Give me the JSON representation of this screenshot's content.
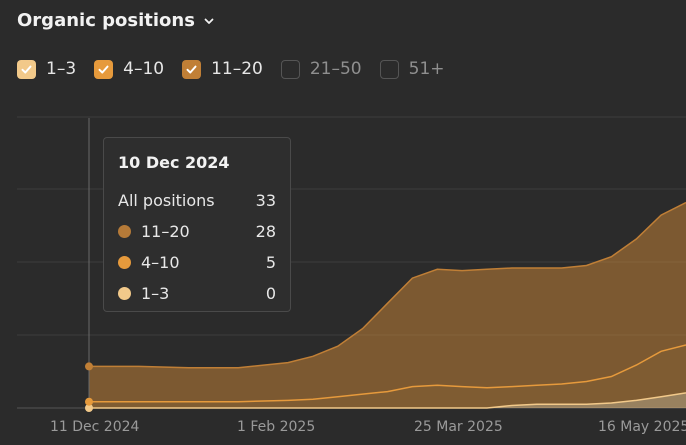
{
  "header": {
    "title": "Organic positions"
  },
  "filters": [
    {
      "label": "1–3",
      "checked": true,
      "color": "#f2c98a"
    },
    {
      "label": "4–10",
      "checked": true,
      "color": "#e69a3c"
    },
    {
      "label": "11–20",
      "checked": true,
      "color": "#c07f36"
    },
    {
      "label": "21–50",
      "checked": false,
      "color": "#555555"
    },
    {
      "label": "51+",
      "checked": false,
      "color": "#555555"
    }
  ],
  "tooltip": {
    "date": "10 Dec 2024",
    "total_label": "All positions",
    "total_value": "33",
    "rows": [
      {
        "label": "11–20",
        "value": "28",
        "color": "#b57a38"
      },
      {
        "label": "4–10",
        "value": "5",
        "color": "#e69a3c"
      },
      {
        "label": "1–3",
        "value": "0",
        "color": "#f2c98a"
      }
    ]
  },
  "chart_data": {
    "type": "area",
    "stacked": true,
    "x_tick_labels": [
      "11 Dec 2024",
      "1 Feb 2025",
      "25 Mar 2025",
      "16 May 2025"
    ],
    "x": [
      "2024-12-10",
      "2024-12-24",
      "2025-01-07",
      "2025-01-21",
      "2025-02-04",
      "2025-02-11",
      "2025-02-18",
      "2025-02-25",
      "2025-03-04",
      "2025-03-11",
      "2025-03-18",
      "2025-03-25",
      "2025-04-01",
      "2025-04-08",
      "2025-04-15",
      "2025-04-22",
      "2025-04-29",
      "2025-05-06",
      "2025-05-13",
      "2025-05-20",
      "2025-05-27"
    ],
    "series": [
      {
        "name": "1–3",
        "color": "#f2c98a",
        "values": [
          0,
          0,
          0,
          0,
          0,
          0,
          0,
          0,
          0,
          0,
          0,
          0,
          0,
          2,
          3,
          3,
          3,
          4,
          6,
          9,
          12
        ]
      },
      {
        "name": "4–10",
        "color": "#e69a3c",
        "values": [
          5,
          5,
          5,
          5,
          6,
          7,
          9,
          11,
          13,
          17,
          18,
          17,
          16,
          15,
          15,
          16,
          18,
          21,
          28,
          36,
          38
        ]
      },
      {
        "name": "11–20",
        "color": "#c07f36",
        "values": [
          28,
          28,
          27,
          27,
          30,
          34,
          40,
          52,
          70,
          86,
          92,
          92,
          94,
          94,
          93,
          92,
          92,
          95,
          100,
          108,
          113
        ]
      }
    ],
    "ylim": [
      0,
      230
    ],
    "grid": true
  }
}
